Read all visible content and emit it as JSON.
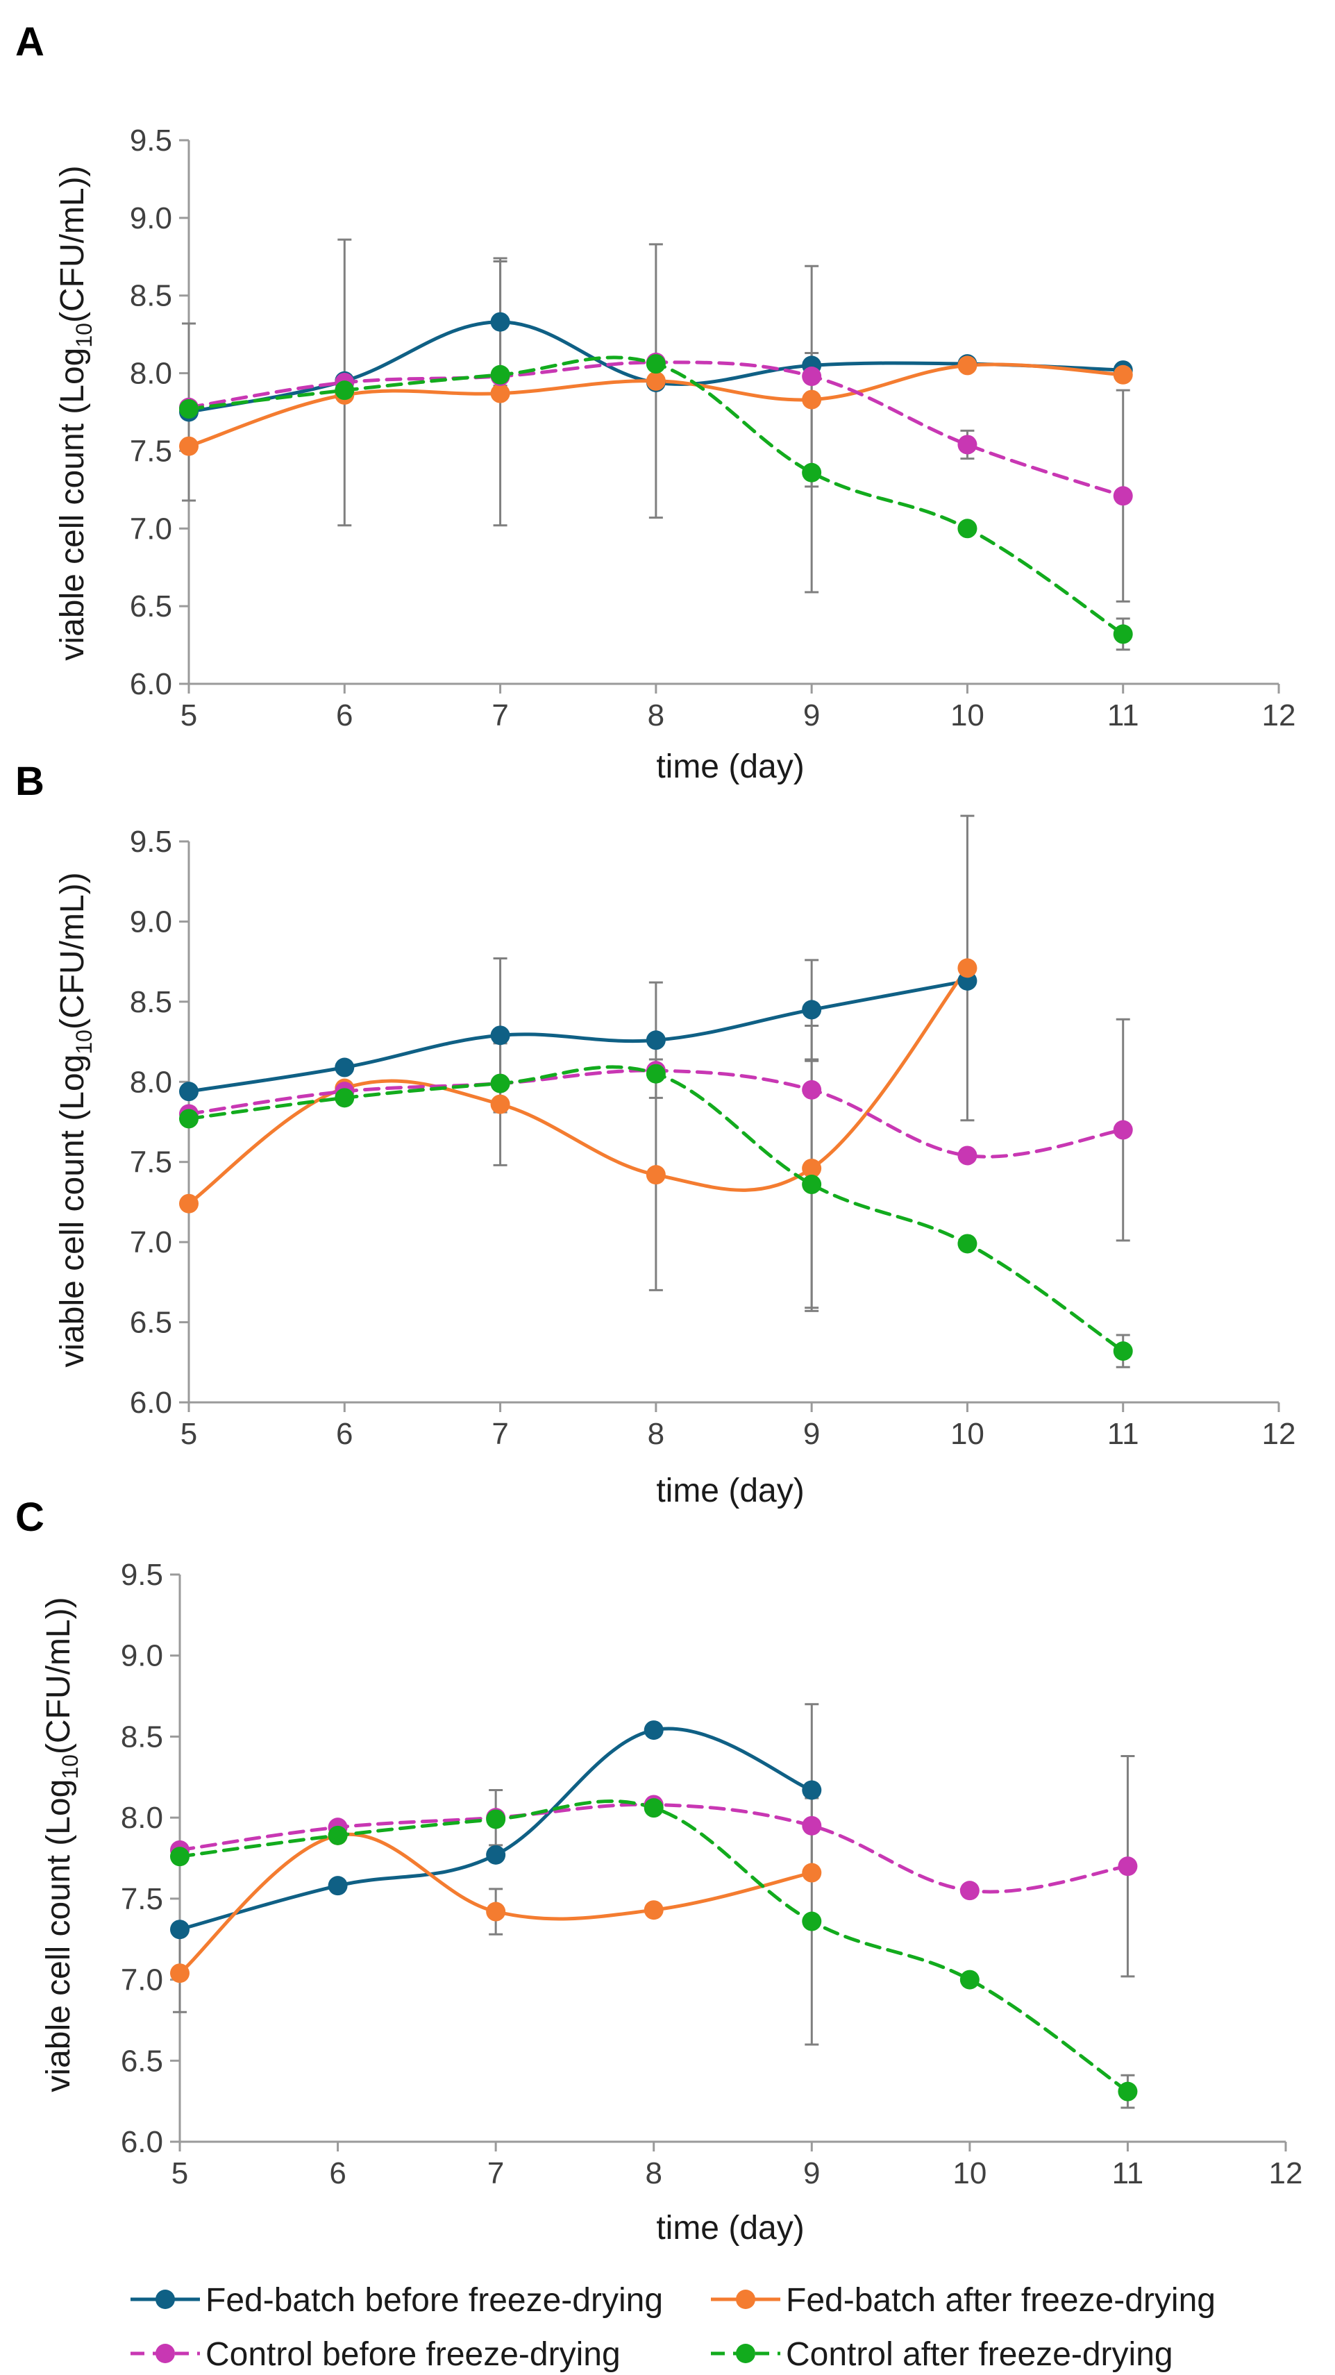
{
  "chart_data": [
    {
      "panel_label": "A",
      "type": "line",
      "xlabel": "time (day)",
      "ylabel": {
        "prefix": "viable cell count (Log",
        "subscript": "10",
        "suffix": "(CFU/mL))"
      },
      "xlim": [
        5,
        12
      ],
      "ylim": [
        6.0,
        9.5
      ],
      "x_ticks": [
        "5",
        "6",
        "7",
        "8",
        "9",
        "10",
        "11",
        "12"
      ],
      "y_ticks": [
        "6.0",
        "6.5",
        "7.0",
        "7.5",
        "8.0",
        "8.5",
        "9.0",
        "9.5"
      ],
      "series": [
        {
          "key": "fb_before",
          "x": [
            5,
            6,
            7,
            8,
            9,
            10,
            11
          ],
          "y": [
            7.75,
            7.95,
            8.33,
            7.94,
            8.05,
            8.06,
            8.02
          ],
          "err": [
            0.57,
            0.0,
            0.41,
            0.0,
            0.0,
            0.0,
            0.0
          ]
        },
        {
          "key": "fb_after",
          "x": [
            5,
            6,
            7,
            8,
            9,
            10,
            11
          ],
          "y": [
            7.53,
            7.86,
            7.87,
            7.95,
            7.83,
            8.05,
            7.99
          ],
          "err": [
            0.0,
            0.0,
            0.85,
            0.88,
            0.0,
            0.0,
            0.0
          ]
        },
        {
          "key": "ctrl_before",
          "x": [
            5,
            6,
            7,
            8,
            9,
            10,
            11
          ],
          "y": [
            7.78,
            7.94,
            7.98,
            8.07,
            7.98,
            7.54,
            7.21
          ],
          "err": [
            0.0,
            0.92,
            0.0,
            0.0,
            0.71,
            0.09,
            0.68
          ]
        },
        {
          "key": "ctrl_after",
          "x": [
            5,
            6,
            7,
            8,
            9,
            10,
            11
          ],
          "y": [
            7.77,
            7.89,
            7.99,
            8.06,
            7.36,
            7.0,
            6.32
          ],
          "err": [
            0.0,
            0.0,
            0.0,
            0.0,
            0.77,
            0.0,
            0.1
          ]
        }
      ]
    },
    {
      "panel_label": "B",
      "type": "line",
      "xlabel": "time (day)",
      "ylabel": {
        "prefix": "viable cell count (Log",
        "subscript": "10",
        "suffix": "(CFU/mL))"
      },
      "xlim": [
        5,
        12
      ],
      "ylim": [
        6.0,
        9.5
      ],
      "x_ticks": [
        "5",
        "6",
        "7",
        "8",
        "9",
        "10",
        "11",
        "12"
      ],
      "y_ticks": [
        "6.0",
        "6.5",
        "7.0",
        "7.5",
        "8.0",
        "8.5",
        "9.0",
        "9.5"
      ],
      "series": [
        {
          "key": "fb_before",
          "x": [
            5,
            6,
            7,
            8,
            9,
            10
          ],
          "y": [
            7.94,
            8.09,
            8.29,
            8.26,
            8.45,
            8.63
          ],
          "err": [
            0.0,
            0.0,
            0.48,
            0.36,
            0.31,
            0.0
          ]
        },
        {
          "key": "fb_after",
          "x": [
            5,
            6,
            7,
            8,
            9,
            10
          ],
          "y": [
            7.24,
            7.96,
            7.86,
            7.42,
            7.46,
            8.71
          ],
          "err": [
            0.0,
            0.0,
            0.38,
            0.72,
            0.89,
            0.95
          ]
        },
        {
          "key": "ctrl_before",
          "x": [
            5,
            6,
            7,
            8,
            9,
            10,
            11
          ],
          "y": [
            7.8,
            7.94,
            7.99,
            8.07,
            7.95,
            7.54,
            7.7
          ],
          "err": [
            0.0,
            0.0,
            0.0,
            0.0,
            0.0,
            0.0,
            0.69
          ]
        },
        {
          "key": "ctrl_after",
          "x": [
            5,
            6,
            7,
            8,
            9,
            10,
            11
          ],
          "y": [
            7.77,
            7.9,
            7.99,
            8.05,
            7.36,
            6.99,
            6.32
          ],
          "err": [
            0.0,
            0.0,
            0.0,
            0.0,
            0.77,
            0.0,
            0.1
          ]
        }
      ]
    },
    {
      "panel_label": "C",
      "type": "line",
      "xlabel": "time (day)",
      "ylabel": {
        "prefix": "viable cell count (Log",
        "subscript": "10",
        "suffix": "(CFU/mL))"
      },
      "xlim": [
        5,
        12
      ],
      "ylim": [
        6.0,
        9.5
      ],
      "x_ticks": [
        "5",
        "6",
        "7",
        "8",
        "9",
        "10",
        "11",
        "12"
      ],
      "y_ticks": [
        "6.0",
        "6.5",
        "7.0",
        "7.5",
        "8.0",
        "8.5",
        "9.0",
        "9.5"
      ],
      "series": [
        {
          "key": "fb_before",
          "x": [
            5,
            6,
            7,
            8,
            9
          ],
          "y": [
            7.31,
            7.58,
            7.77,
            8.54,
            8.17
          ],
          "err": [
            0.0,
            0.0,
            0.0,
            0.0,
            0.53
          ]
        },
        {
          "key": "fb_after",
          "x": [
            5,
            6,
            7,
            8,
            9
          ],
          "y": [
            7.04,
            7.89,
            7.42,
            7.43,
            7.66
          ],
          "err": [
            0.24,
            0.0,
            0.14,
            0.0,
            0.0
          ]
        },
        {
          "key": "ctrl_before",
          "x": [
            5,
            6,
            7,
            8,
            9,
            10,
            11
          ],
          "y": [
            7.8,
            7.94,
            8.0,
            8.08,
            7.95,
            7.55,
            7.7
          ],
          "err": [
            0.0,
            0.0,
            0.17,
            0.0,
            0.0,
            0.0,
            0.68
          ]
        },
        {
          "key": "ctrl_after",
          "x": [
            5,
            6,
            7,
            8,
            9,
            10,
            11
          ],
          "y": [
            7.76,
            7.89,
            7.99,
            8.06,
            7.36,
            7.0,
            6.31
          ],
          "err": [
            0.0,
            0.0,
            0.0,
            0.0,
            0.76,
            0.0,
            0.1
          ]
        }
      ]
    }
  ],
  "series_styles": [
    {
      "key": "fb_before",
      "name": "Fed-batch before freeze-drying",
      "color": "#0f6085",
      "dash": "solid"
    },
    {
      "key": "fb_after",
      "name": "Fed-batch after freeze-drying",
      "color": "#f47c30",
      "dash": "solid"
    },
    {
      "key": "ctrl_before",
      "name": "Control before freeze-drying",
      "color": "#c837b3",
      "dash": "dashed"
    },
    {
      "key": "ctrl_after",
      "name": "Control after freeze-drying",
      "color": "#12ab1d",
      "dash": "dashed"
    }
  ],
  "legend": {
    "position": "bottom",
    "items": [
      {
        "key": "fb_before",
        "label": "Fed-batch before freeze-drying"
      },
      {
        "key": "fb_after",
        "label": "Fed-batch after freeze-drying"
      },
      {
        "key": "ctrl_before",
        "label": "Control before freeze-drying"
      },
      {
        "key": "ctrl_after",
        "label": "Control after freeze-drying"
      }
    ]
  }
}
